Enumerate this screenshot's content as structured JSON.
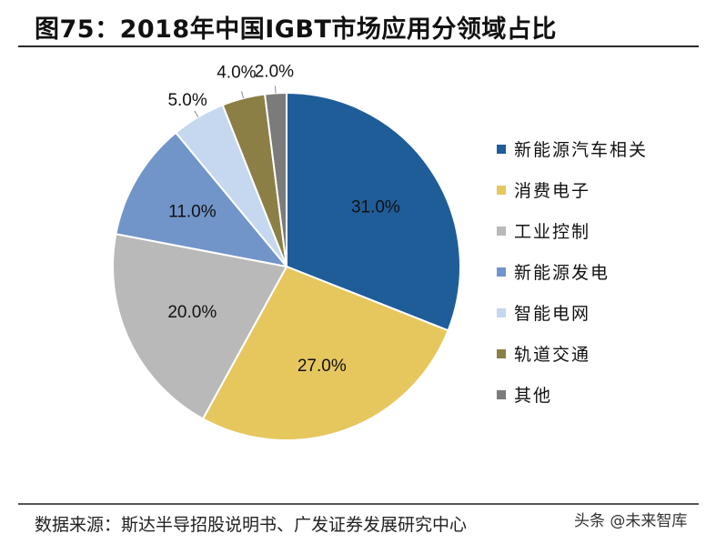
{
  "title": "图75：2018年中国IGBT市场应用分领域占比",
  "source": "数据来源：斯达半导招股说明书、广发证券发展研究中心",
  "watermark": "头条 @未来智库",
  "chart_data": {
    "type": "pie",
    "title": "图75：2018年中国IGBT市场应用分领域占比",
    "categories": [
      "新能源汽车相关",
      "消费电子",
      "工业控制",
      "新能源发电",
      "智能电网",
      "轨道交通",
      "其他"
    ],
    "values": [
      31.0,
      27.0,
      20.0,
      11.0,
      5.0,
      4.0,
      2.0
    ],
    "data_labels": [
      "31.0%",
      "27.0%",
      "20.0%",
      "11.0%",
      "5.0%",
      "4.0%",
      "2.0%"
    ],
    "colors": [
      "#1f5d99",
      "#e6c75e",
      "#b9b9b9",
      "#7195c8",
      "#c5d8ef",
      "#8b7f45",
      "#7b7b7b"
    ],
    "start_angle": "12 o'clock",
    "direction": "clockwise",
    "legend_position": "right"
  }
}
